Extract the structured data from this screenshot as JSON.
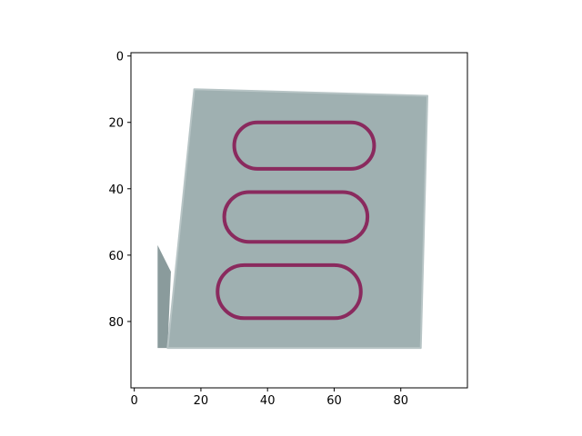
{
  "image": {
    "subject": "playing-card",
    "card_color": "#9fb0b1",
    "card_shadow_color": "#8a9b9c",
    "symbol_color": "#8a2a5e",
    "symbol_shape": "oval",
    "symbol_count": 3,
    "symbol_fill": "empty",
    "axes": {
      "x_range": [
        -1,
        100
      ],
      "y_range": [
        100,
        -1
      ],
      "x_ticks": [
        0,
        20,
        40,
        60,
        80
      ],
      "y_ticks": [
        0,
        20,
        40,
        60,
        80
      ],
      "x_tick_labels": [
        "0",
        "20",
        "40",
        "60",
        "80"
      ],
      "y_tick_labels": [
        "0",
        "20",
        "40",
        "60",
        "80"
      ]
    },
    "card_outline": [
      [
        18,
        10
      ],
      [
        88,
        12
      ],
      [
        86,
        88
      ],
      [
        10,
        88
      ]
    ],
    "symbols": [
      {
        "x1": 30,
        "x2": 72,
        "y1": 20,
        "y2": 34
      },
      {
        "x1": 27,
        "x2": 70,
        "y1": 41,
        "y2": 56
      },
      {
        "x1": 25,
        "x2": 68,
        "y1": 63,
        "y2": 79
      }
    ]
  }
}
